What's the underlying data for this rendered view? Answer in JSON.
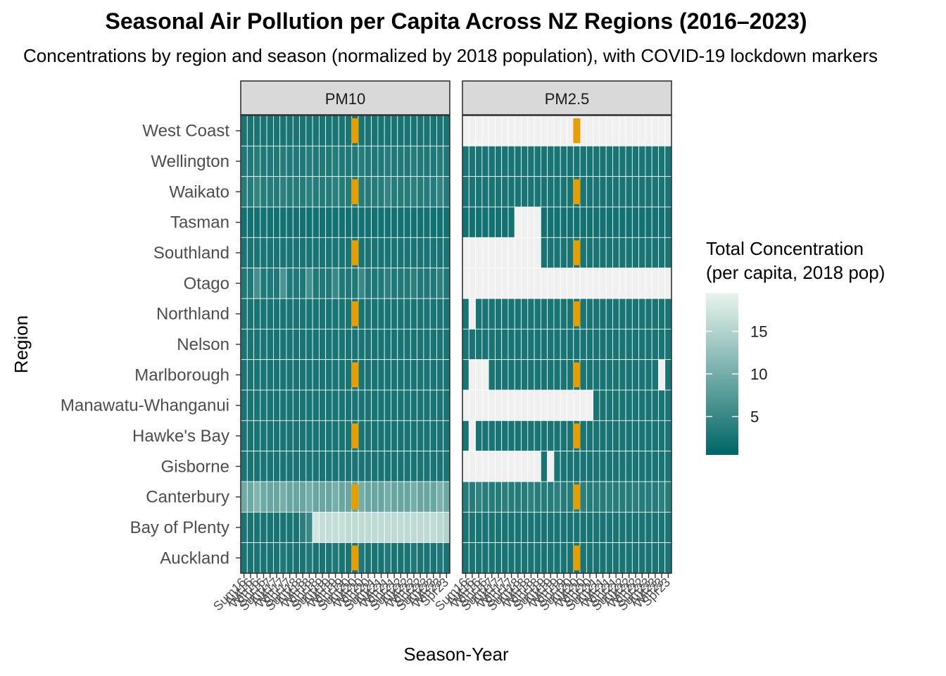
{
  "title": "Seasonal Air Pollution per Capita Across NZ Regions (2016–2023)",
  "subtitle": "Concentrations by region and season (normalized by 2018 population), with COVID-19 lockdown markers",
  "colors": {
    "low": "#006666",
    "high": "#e8f5ec",
    "missing": "#f0f0f0",
    "lockdown": "#e69f00",
    "strip_bg": "#d9d9d9"
  },
  "chart_data": {
    "type": "heatmap",
    "xlabel": "Season-Year",
    "ylabel": "Region",
    "legend": {
      "title_line1": "Total Concentration",
      "title_line2": "(per capita, 2018 pop)",
      "ticks": [
        5,
        10,
        15
      ],
      "range": [
        0.5,
        19.5
      ],
      "placement": "right"
    },
    "facets": [
      "PM10",
      "PM2.5"
    ],
    "regions": [
      "West Coast",
      "Wellington",
      "Waikato",
      "Tasman",
      "Southland",
      "Otago",
      "Northland",
      "Nelson",
      "Marlborough",
      "Manawatu-Whanganui",
      "Hawke's Bay",
      "Gisborne",
      "Canterbury",
      "Bay of Plenty",
      "Auckland"
    ],
    "seasons": [
      "Sum16",
      "Aut16",
      "Win16",
      "Spr16",
      "Sum17",
      "Aut17",
      "Win17",
      "Spr17",
      "Sum18",
      "Aut18",
      "Win18",
      "Spr18",
      "Sum19",
      "Aut19",
      "Win19",
      "Spr19",
      "Sum20",
      "Aut20",
      "Win20",
      "Spr20",
      "Sum21",
      "Aut21",
      "Win21",
      "Spr21",
      "Sum22",
      "Aut22",
      "Win22",
      "Spr22",
      "Sum23",
      "Aut23",
      "Win23",
      "Spr23"
    ],
    "lockdown_season": "Aut20",
    "lockdown_rows": [
      "West Coast",
      "Waikato",
      "Southland",
      "Northland",
      "Marlborough",
      "Hawke's Bay",
      "Canterbury",
      "Auckland"
    ],
    "values": {
      "PM10": {
        "West Coast": [
          2.5,
          2.5,
          2.5,
          2.5,
          2.5,
          2.5,
          2.5,
          2.5,
          2.5,
          2.5,
          2.5,
          2.5,
          2.5,
          2.5,
          2.5,
          2.5,
          2.5,
          2.5,
          2.5,
          2.5,
          2.5,
          2.5,
          2.5,
          2.5,
          2.5,
          2.5,
          2.5,
          2.5,
          2.5,
          2.5,
          2.5,
          2.5
        ],
        "Wellington": [
          3,
          3,
          3.5,
          3,
          3,
          3,
          3.5,
          3,
          3,
          3,
          3.5,
          3,
          3,
          3,
          3.5,
          3,
          3,
          3,
          3.5,
          3,
          3,
          3,
          3.5,
          3,
          3,
          3,
          3.5,
          3,
          3,
          3,
          3.5,
          3
        ],
        "Waikato": [
          3.5,
          3.5,
          4.5,
          3.5,
          3.5,
          3.5,
          4,
          3.5,
          3.5,
          3.5,
          4,
          3.5,
          3.5,
          3.5,
          4,
          3.5,
          3.5,
          3.5,
          3.5,
          3.5,
          3.5,
          3.5,
          4.5,
          3.5,
          3.5,
          3.5,
          4,
          3.5,
          3.5,
          3.5,
          4.5,
          3.5
        ],
        "Tasman": [
          2,
          2,
          2,
          2,
          2,
          2,
          2,
          2,
          2,
          2,
          2,
          2,
          2,
          2,
          2,
          2,
          2,
          2,
          2,
          2,
          2,
          2,
          2,
          2,
          2,
          2,
          2,
          2,
          2,
          2,
          2,
          2
        ],
        "Southland": [
          2.5,
          2.5,
          2.5,
          2.5,
          2.5,
          2.5,
          2.5,
          2.5,
          2.5,
          2.5,
          2.5,
          2.5,
          2.5,
          2.5,
          2.5,
          2.5,
          2.5,
          2.5,
          2.5,
          2.5,
          2.5,
          2.5,
          2.5,
          2.5,
          2.5,
          2.5,
          2.5,
          2.5,
          2.5,
          2.5,
          2.5,
          2.5
        ],
        "Otago": [
          3,
          3,
          6,
          3,
          3,
          3,
          6.5,
          3,
          3,
          3,
          6,
          3,
          3,
          3,
          5,
          3,
          3,
          3,
          5,
          3,
          3,
          3,
          4,
          3,
          3,
          3,
          4,
          3,
          3,
          3,
          4,
          3
        ],
        "Northland": [
          2.5,
          2.5,
          2.5,
          2.5,
          2.5,
          2.5,
          2.5,
          2.5,
          2.5,
          2.5,
          2.5,
          2.5,
          2.5,
          2.5,
          2.5,
          2.5,
          2.5,
          2.5,
          2.5,
          2.5,
          2.5,
          2.5,
          2.5,
          2.5,
          2.5,
          2.5,
          2.5,
          2.5,
          2.5,
          2.5,
          2.5,
          2.5
        ],
        "Nelson": [
          2.5,
          2.5,
          2.5,
          2.5,
          2.5,
          2.5,
          2.5,
          2.5,
          2.5,
          2.5,
          2.5,
          2.5,
          2.5,
          2.5,
          2.5,
          2.5,
          2.5,
          2.5,
          2.5,
          2.5,
          2.5,
          2.5,
          2.5,
          2.5,
          2.5,
          2.5,
          2.5,
          2.5,
          2.5,
          2.5,
          2.5,
          2.5
        ],
        "Marlborough": [
          2.5,
          2.5,
          2.5,
          2.5,
          2.5,
          2.5,
          2.5,
          2.5,
          2.5,
          2.5,
          2.5,
          2.5,
          2.5,
          2.5,
          2.5,
          2.5,
          2.5,
          2.5,
          2.5,
          2.5,
          2.5,
          2.5,
          2.5,
          2.5,
          2.5,
          2.5,
          2.5,
          2.5,
          2.5,
          2.5,
          2.5,
          2.5
        ],
        "Manawatu-Whanganui": [
          2.5,
          2.5,
          2.5,
          2.5,
          2.5,
          2.5,
          2.5,
          2.5,
          2.5,
          2.5,
          2.5,
          2.5,
          2.5,
          2.5,
          2.5,
          2.5,
          2.5,
          2.5,
          2.5,
          2.5,
          2.5,
          2.5,
          2.5,
          2.5,
          2.5,
          2.5,
          2.5,
          2.5,
          2.5,
          2.5,
          2.5,
          2.5
        ],
        "Hawke's Bay": [
          2.5,
          2.5,
          2.5,
          2.5,
          2.5,
          2.5,
          2.5,
          2.5,
          2.5,
          2.5,
          2.5,
          2.5,
          2.5,
          2.5,
          2.5,
          2.5,
          2.5,
          2.5,
          2.5,
          2.5,
          2.5,
          2.5,
          2.5,
          2.5,
          2.5,
          2.5,
          2.5,
          2.5,
          2.5,
          2.5,
          2.5,
          2.5
        ],
        "Gisborne": [
          2.5,
          2.5,
          2.5,
          2.5,
          2.5,
          2.5,
          2.5,
          2.5,
          2.5,
          2.5,
          2.5,
          2.5,
          2.5,
          2.5,
          2.5,
          2.5,
          2.5,
          2.5,
          2.5,
          2.5,
          2.5,
          2.5,
          2.5,
          2.5,
          2.5,
          2.5,
          2.5,
          2.5,
          2.5,
          2.5,
          2.5,
          2.5
        ],
        "Canterbury": [
          9.5,
          9.5,
          11,
          9.5,
          9,
          9,
          10,
          9,
          9,
          9,
          10,
          9,
          9,
          9,
          10,
          9,
          9,
          9,
          10,
          9,
          9,
          9,
          10,
          9,
          9,
          9,
          10,
          9,
          9,
          9,
          10.5,
          9.5
        ],
        "Bay of Plenty": [
          2.5,
          2.5,
          2.5,
          2.5,
          2.5,
          2.5,
          2.5,
          2.5,
          2.5,
          4,
          5,
          17.5,
          16.5,
          16.5,
          16.5,
          16.5,
          16,
          16,
          16,
          16,
          16,
          16,
          16,
          16,
          16,
          16,
          16,
          16,
          16,
          16,
          15.5,
          15
        ],
        "Auckland": [
          2.5,
          2.5,
          2.5,
          2.5,
          2.5,
          2.5,
          3,
          2.5,
          2.5,
          2.5,
          3,
          2.5,
          2.5,
          2.5,
          3,
          2.5,
          2.5,
          2.5,
          3,
          2.5,
          2.5,
          2.5,
          3,
          2.5,
          2.5,
          2.5,
          3,
          2.5,
          2.5,
          2.5,
          3,
          2.5
        ]
      },
      "PM2.5": {
        "West Coast": [
          null,
          null,
          null,
          null,
          null,
          null,
          null,
          null,
          null,
          null,
          null,
          null,
          null,
          null,
          null,
          null,
          null,
          null,
          null,
          null,
          null,
          null,
          null,
          null,
          null,
          null,
          null,
          null,
          null,
          null,
          null,
          null
        ],
        "Wellington": [
          2.5,
          2.5,
          2.5,
          2.5,
          2.5,
          2.5,
          2.5,
          2.5,
          2.5,
          2.5,
          2.5,
          2.5,
          2.5,
          2.5,
          2.5,
          2.5,
          2.5,
          2.5,
          2.5,
          2.5,
          2.5,
          2.5,
          2.5,
          2.5,
          2.5,
          2.5,
          2.5,
          2.5,
          2.5,
          2.5,
          2.5,
          2.5
        ],
        "Waikato": [
          2.5,
          2.5,
          2.5,
          2.5,
          2.5,
          2.5,
          2.5,
          2.5,
          2.5,
          2.5,
          2.5,
          2.5,
          2.5,
          2.5,
          2.5,
          2.5,
          2.5,
          2.5,
          2.5,
          2.5,
          2.5,
          2.5,
          2.5,
          2.5,
          2.5,
          2.5,
          2.5,
          2.5,
          2.5,
          2.5,
          2.5,
          2.5
        ],
        "Tasman": [
          2,
          2,
          2,
          2,
          2,
          2,
          2,
          2,
          null,
          null,
          null,
          null,
          2,
          2,
          2,
          2,
          2,
          2,
          2,
          2,
          2,
          2,
          2,
          2,
          2,
          2,
          2,
          2,
          2,
          2,
          2,
          2
        ],
        "Southland": [
          null,
          null,
          null,
          null,
          null,
          null,
          null,
          null,
          null,
          null,
          null,
          null,
          2.5,
          2.5,
          2.5,
          2.5,
          2.5,
          2.5,
          2.5,
          2.5,
          2.5,
          2.5,
          2.5,
          2.5,
          2.5,
          2.5,
          2.5,
          2.5,
          2.5,
          2.5,
          2.5,
          2.5
        ],
        "Otago": [
          null,
          null,
          null,
          null,
          null,
          null,
          null,
          null,
          null,
          null,
          null,
          null,
          null,
          null,
          null,
          null,
          null,
          null,
          null,
          null,
          null,
          null,
          null,
          null,
          null,
          null,
          null,
          null,
          null,
          null,
          null,
          null
        ],
        "Northland": [
          2.5,
          null,
          2.5,
          2.5,
          2.5,
          2.5,
          2.5,
          2.5,
          2.5,
          2.5,
          2.5,
          2.5,
          2.5,
          2.5,
          2.5,
          2.5,
          2.5,
          2.5,
          2.5,
          2.5,
          2.5,
          2.5,
          2.5,
          2.5,
          2.5,
          2.5,
          2.5,
          2.5,
          2.5,
          2.5,
          2.5,
          2.5
        ],
        "Nelson": [
          2.5,
          2.5,
          2.5,
          2.5,
          2.5,
          2.5,
          2.5,
          2.5,
          2.5,
          2.5,
          2.5,
          2.5,
          2.5,
          2.5,
          2.5,
          2.5,
          2.5,
          2.5,
          2.5,
          2.5,
          2.5,
          2.5,
          2.5,
          2.5,
          2.5,
          2.5,
          2.5,
          2.5,
          2.5,
          2.5,
          2.5,
          2.5
        ],
        "Marlborough": [
          2.5,
          null,
          null,
          null,
          2.5,
          2.5,
          2.5,
          2.5,
          2.5,
          2.5,
          2.5,
          2.5,
          2.5,
          2.5,
          2.5,
          2.5,
          2.5,
          2.5,
          2.5,
          2.5,
          2.5,
          2.5,
          2.5,
          2.5,
          2.5,
          2.5,
          2.5,
          2.5,
          2.5,
          2.5,
          null,
          2.5
        ],
        "Manawatu-Whanganui": [
          null,
          null,
          null,
          null,
          null,
          null,
          null,
          null,
          null,
          null,
          null,
          null,
          null,
          null,
          null,
          null,
          null,
          null,
          null,
          null,
          2.5,
          2.5,
          2.5,
          2.5,
          2.5,
          2.5,
          2.5,
          2.5,
          2.5,
          2.5,
          2.5,
          2.5
        ],
        "Hawke's Bay": [
          2.5,
          null,
          2.5,
          2.5,
          2.5,
          2.5,
          2.5,
          2.5,
          2.5,
          2.5,
          2.5,
          2.5,
          2.5,
          2.5,
          2.5,
          2.5,
          2.5,
          2.5,
          2.5,
          2.5,
          2.5,
          2.5,
          2.5,
          2.5,
          2.5,
          2.5,
          2.5,
          2.5,
          2.5,
          2.5,
          2.5,
          2.5
        ],
        "Gisborne": [
          null,
          null,
          null,
          null,
          null,
          null,
          null,
          null,
          null,
          null,
          null,
          null,
          2.5,
          null,
          2.5,
          2.5,
          2.5,
          2.5,
          2.5,
          2.5,
          2.5,
          2.5,
          2.5,
          2.5,
          2.5,
          2.5,
          2.5,
          2.5,
          2.5,
          2.5,
          2.5,
          2.5
        ],
        "Canterbury": [
          3.5,
          3.5,
          4.5,
          3.5,
          3.5,
          3.5,
          4,
          3.5,
          3.5,
          3.5,
          4,
          3.5,
          3.5,
          3.5,
          4,
          3.5,
          3.5,
          3.5,
          4,
          3.5,
          3.5,
          3.5,
          4,
          3.5,
          3.5,
          3.5,
          4,
          3.5,
          3.5,
          3.5,
          4,
          3.5
        ],
        "Bay of Plenty": [
          2.5,
          2.5,
          2.5,
          2.5,
          2.5,
          2.5,
          2.5,
          2.5,
          2.5,
          2.5,
          2.5,
          2.5,
          2.5,
          2.5,
          2.5,
          2.5,
          2.5,
          2.5,
          2.5,
          2.5,
          2.5,
          2.5,
          2.5,
          2.5,
          2.5,
          2.5,
          2.5,
          2.5,
          2.5,
          2.5,
          2.5,
          2.5
        ],
        "Auckland": [
          2.5,
          2.5,
          2.5,
          2.5,
          2.5,
          2.5,
          2.5,
          2.5,
          2.5,
          2.5,
          2.5,
          2.5,
          2.5,
          2.5,
          2.5,
          2.5,
          2.5,
          2.5,
          2.5,
          2.5,
          2.5,
          2.5,
          2.5,
          2.5,
          2.5,
          2.5,
          2.5,
          2.5,
          2.5,
          2.5,
          2.5,
          2.5
        ]
      }
    }
  }
}
